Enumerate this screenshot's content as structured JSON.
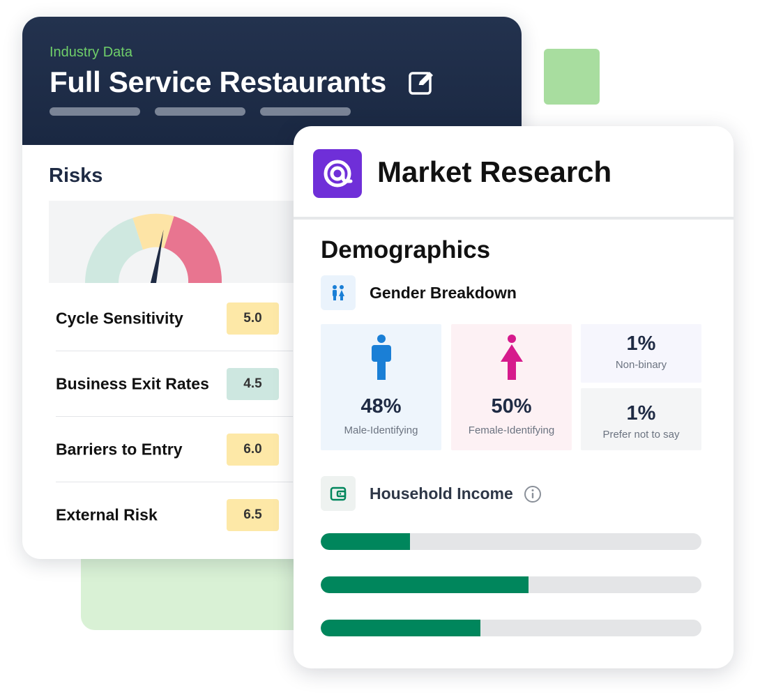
{
  "industry": {
    "subtitle": "Industry Data",
    "title": "Full Service Restaurants",
    "risks": {
      "heading": "Risks",
      "gauge": {
        "level": 0.56,
        "colors": {
          "low": "#cfe8e0",
          "medium": "#fde4a6",
          "high": "#e87590",
          "needle": "#1f2b44"
        }
      },
      "items": [
        {
          "label": "Cycle Sensitivity",
          "value": "5.0",
          "level": "medium"
        },
        {
          "label": "Business Exit Rates",
          "value": "4.5",
          "level": "low"
        },
        {
          "label": "Barriers to Entry",
          "value": "6.0",
          "level": "medium"
        },
        {
          "label": "External Risk",
          "value": "6.5",
          "level": "medium"
        }
      ]
    }
  },
  "market": {
    "title": "Market Research",
    "logo_icon": "at-sign-icon",
    "demographics": {
      "heading": "Demographics",
      "gender": {
        "label": "Gender Breakdown",
        "icon": "people-icon",
        "male": {
          "pct": "48%",
          "caption": "Male-Identifying",
          "color": "#1a7fd6"
        },
        "female": {
          "pct": "50%",
          "caption": "Female-Identifying",
          "color": "#d61a8c"
        },
        "nonbinary": {
          "pct": "1%",
          "caption": "Non-binary"
        },
        "prefer_not": {
          "pct": "1%",
          "caption": "Prefer not to say"
        }
      },
      "income": {
        "label": "Household Income",
        "icon": "wallet-icon",
        "bar_fills": [
          0.235,
          0.545,
          0.42
        ],
        "bar_color": "#00865c"
      }
    }
  }
}
